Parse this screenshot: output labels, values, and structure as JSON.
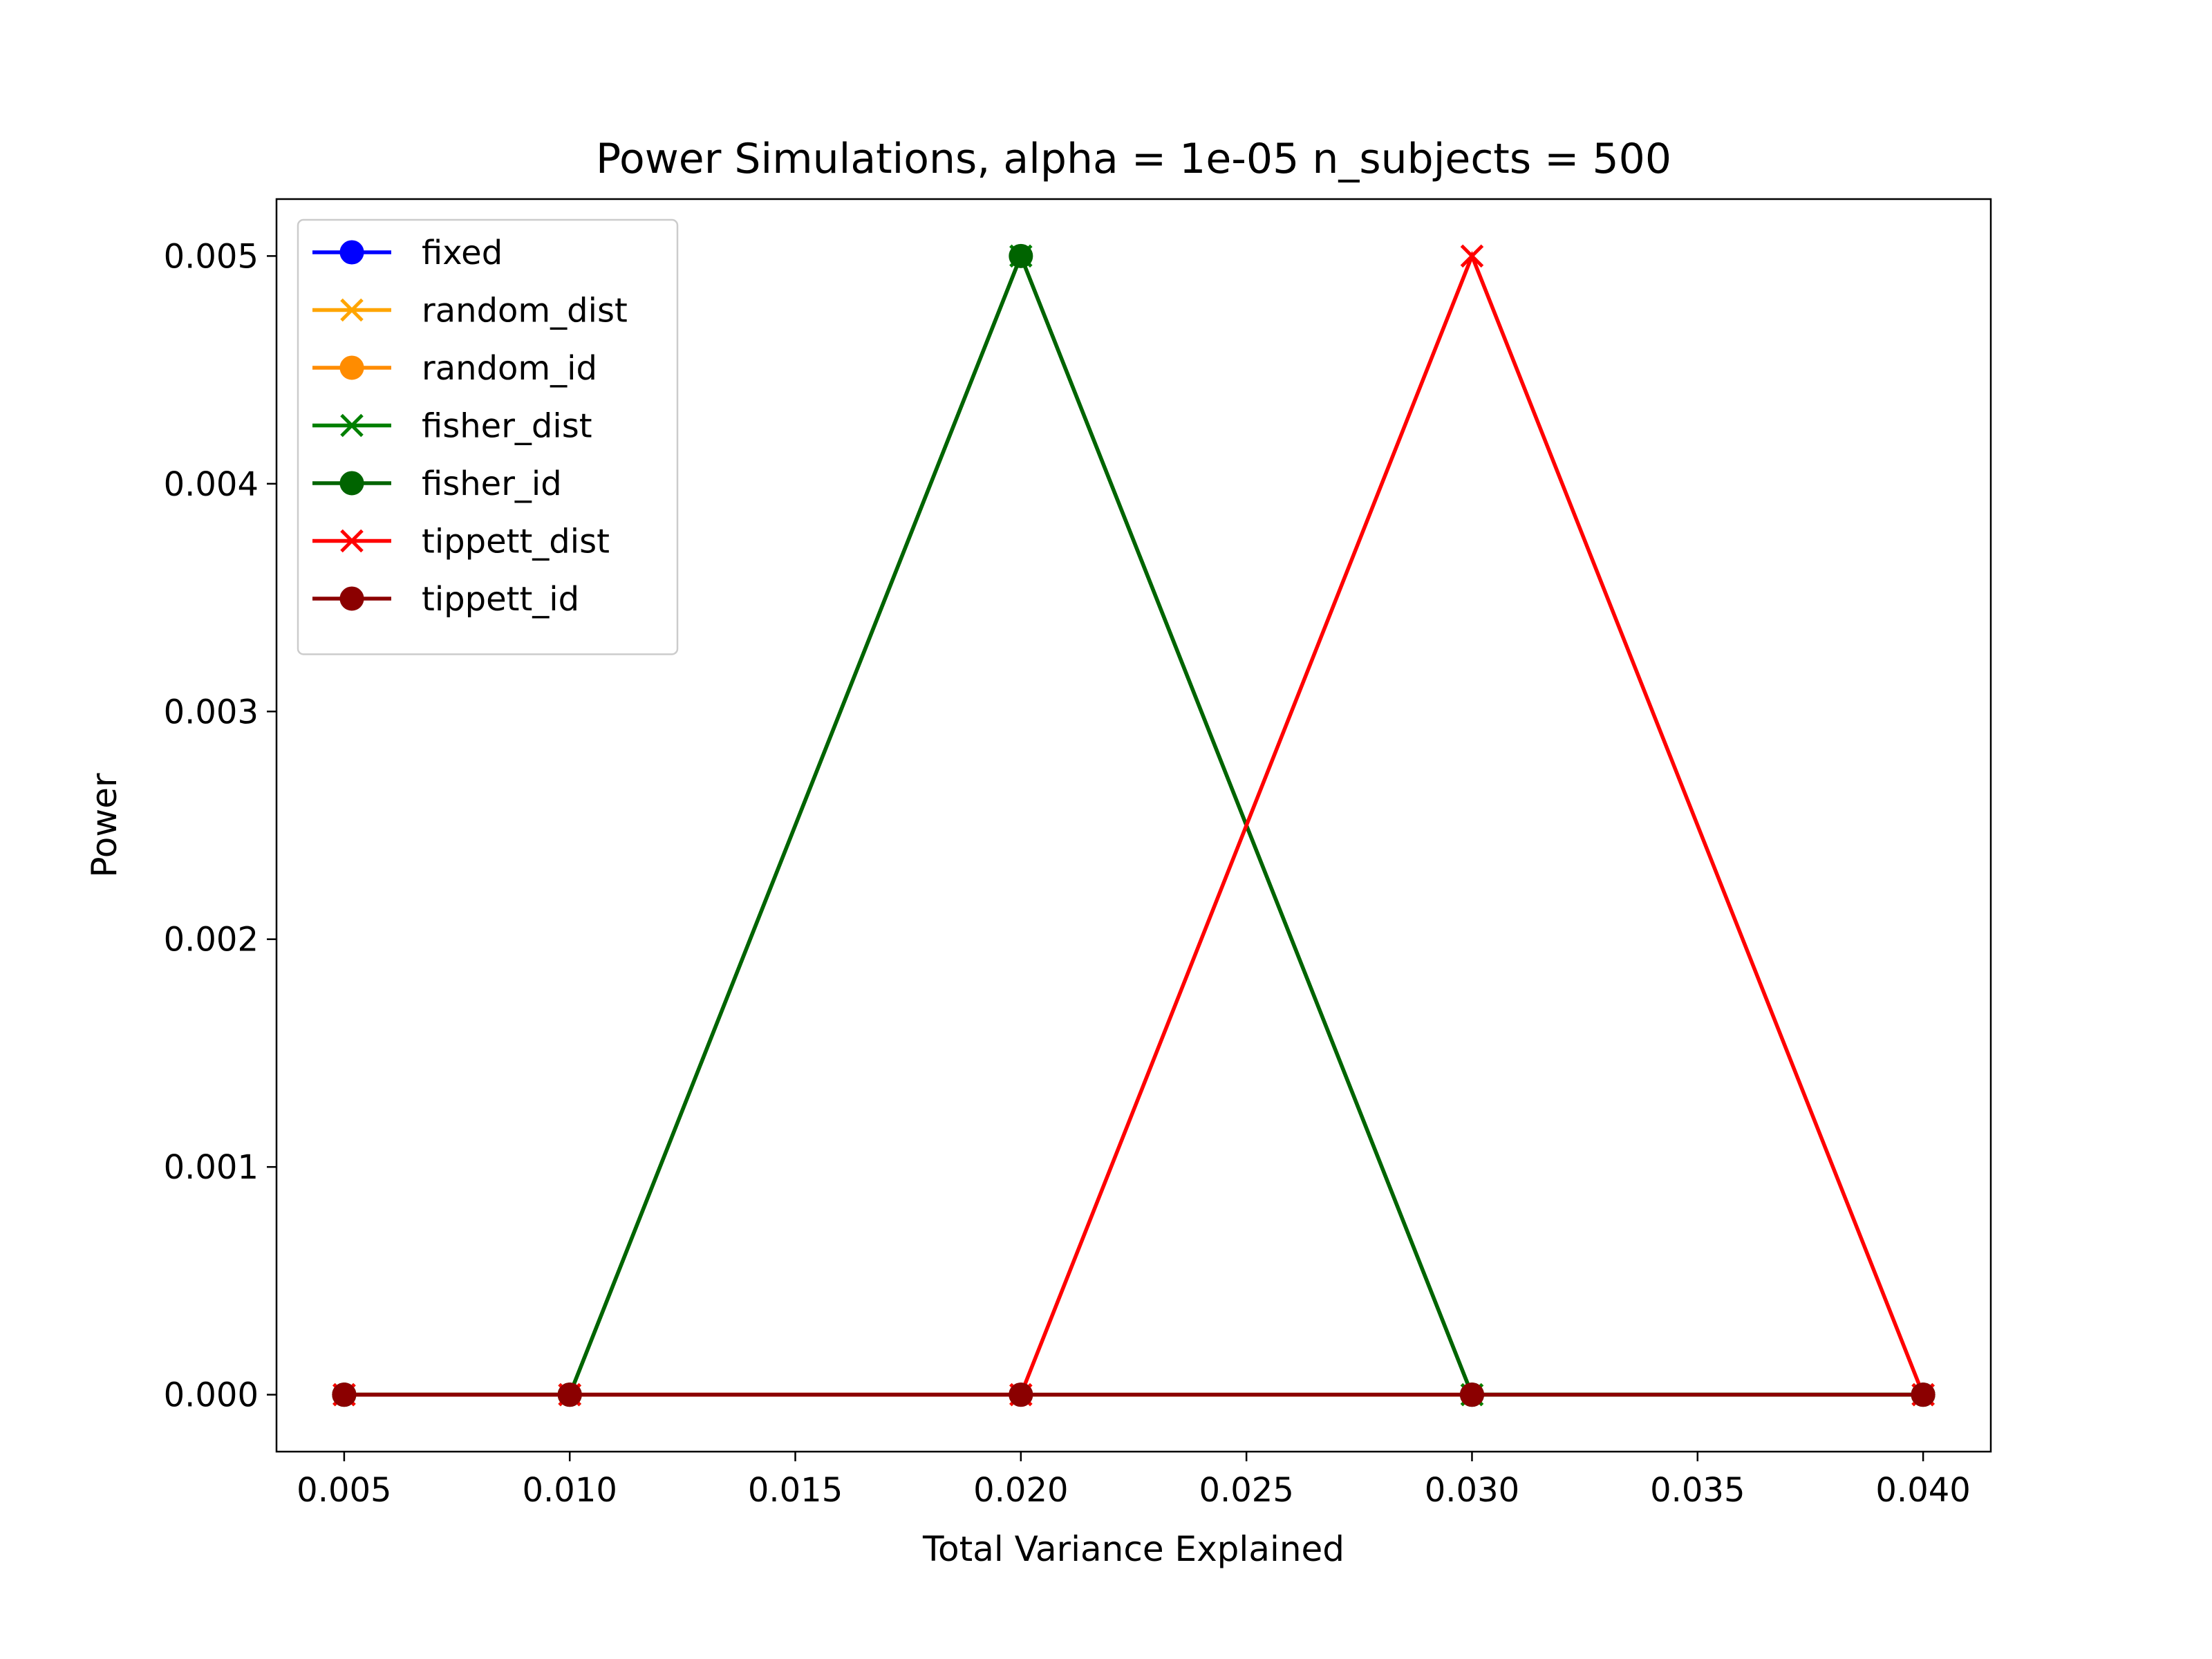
{
  "chart_data": {
    "type": "line",
    "title": "Power Simulations, alpha = 1e-05 n_subjects = 500",
    "xlabel": "Total Variance Explained",
    "ylabel": "Power",
    "xlim": [
      0.0035,
      0.0415
    ],
    "ylim": [
      -0.00025,
      0.00525
    ],
    "x": [
      0.005,
      0.01,
      0.02,
      0.03,
      0.04
    ],
    "xticks": [
      0.005,
      0.01,
      0.015,
      0.02,
      0.025,
      0.03,
      0.035,
      0.04
    ],
    "xtick_labels": [
      "0.005",
      "0.010",
      "0.015",
      "0.020",
      "0.025",
      "0.030",
      "0.035",
      "0.040"
    ],
    "yticks": [
      0.0,
      0.001,
      0.002,
      0.003,
      0.004,
      0.005
    ],
    "ytick_labels": [
      "0.000",
      "0.001",
      "0.002",
      "0.003",
      "0.004",
      "0.005"
    ],
    "grid": false,
    "legend_position": "top-left",
    "series": [
      {
        "name": "fixed",
        "color": "#0000ff",
        "marker": "circle",
        "values": [
          0,
          0,
          0,
          0,
          0
        ]
      },
      {
        "name": "random_dist",
        "color": "#ffa500",
        "marker": "x",
        "values": [
          0,
          0,
          0,
          0,
          0
        ]
      },
      {
        "name": "random_id",
        "color": "#ff8c00",
        "marker": "circle",
        "values": [
          0,
          0,
          0,
          0,
          0
        ]
      },
      {
        "name": "fisher_dist",
        "color": "#008000",
        "marker": "x",
        "values": [
          0,
          0,
          0.005,
          0,
          0
        ]
      },
      {
        "name": "fisher_id",
        "color": "#006400",
        "marker": "circle",
        "values": [
          0,
          0,
          0.005,
          0,
          0
        ]
      },
      {
        "name": "tippett_dist",
        "color": "#ff0000",
        "marker": "x",
        "values": [
          0,
          0,
          0,
          0.005,
          0
        ]
      },
      {
        "name": "tippett_id",
        "color": "#8b0000",
        "marker": "circle",
        "values": [
          0,
          0,
          0,
          0,
          0
        ]
      }
    ]
  }
}
